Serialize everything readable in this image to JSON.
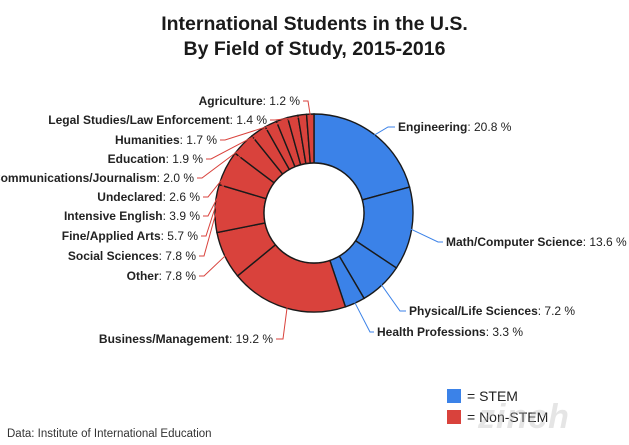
{
  "title_line1": "International Students in the U.S.",
  "title_line2": "By Field of Study, 2015-2016",
  "source": "Data: Institute of International Education",
  "watermark": "zinch",
  "legend": [
    {
      "label": "= STEM",
      "color": "#3b82e8"
    },
    {
      "label": "= Non-STEM",
      "color": "#d9423c"
    }
  ],
  "colors": {
    "stem": "#3b82e8",
    "non_stem": "#d9423c",
    "stroke": "#1a1a1a",
    "leader": "#d9423c",
    "leader_stem": "#3b82e8"
  },
  "chart_data": {
    "type": "pie",
    "style": "donut",
    "slices": [
      {
        "name": "Engineering",
        "value": 20.8,
        "label": "20.8 %",
        "group": "STEM"
      },
      {
        "name": "Math/Computer Science",
        "value": 13.6,
        "label": "13.6 %",
        "group": "STEM"
      },
      {
        "name": "Physical/Life Sciences",
        "value": 7.2,
        "label": "7.2 %",
        "group": "STEM"
      },
      {
        "name": "Health Professions",
        "value": 3.3,
        "label": "3.3 %",
        "group": "STEM"
      },
      {
        "name": "Business/Management",
        "value": 19.2,
        "label": "19.2 %",
        "group": "Non-STEM"
      },
      {
        "name": "Other",
        "value": 7.8,
        "label": "7.8 %",
        "group": "Non-STEM"
      },
      {
        "name": "Social Sciences",
        "value": 7.8,
        "label": "7.8 %",
        "group": "Non-STEM"
      },
      {
        "name": "Fine/Applied Arts",
        "value": 5.7,
        "label": "5.7 %",
        "group": "Non-STEM"
      },
      {
        "name": "Intensive English",
        "value": 3.9,
        "label": "3.9 %",
        "group": "Non-STEM"
      },
      {
        "name": "Undeclared",
        "value": 2.6,
        "label": "2.6 %",
        "group": "Non-STEM"
      },
      {
        "name": "Communications/Journalism",
        "value": 2.0,
        "label": "2.0 %",
        "group": "Non-STEM"
      },
      {
        "name": "Education",
        "value": 1.9,
        "label": "1.9 %",
        "group": "Non-STEM"
      },
      {
        "name": "Humanities",
        "value": 1.7,
        "label": "1.7 %",
        "group": "Non-STEM"
      },
      {
        "name": "Legal Studies/Law Enforcement",
        "value": 1.4,
        "label": "1.4 %",
        "group": "Non-STEM"
      },
      {
        "name": "Agriculture",
        "value": 1.2,
        "label": "1.2 %",
        "group": "Non-STEM"
      }
    ]
  }
}
